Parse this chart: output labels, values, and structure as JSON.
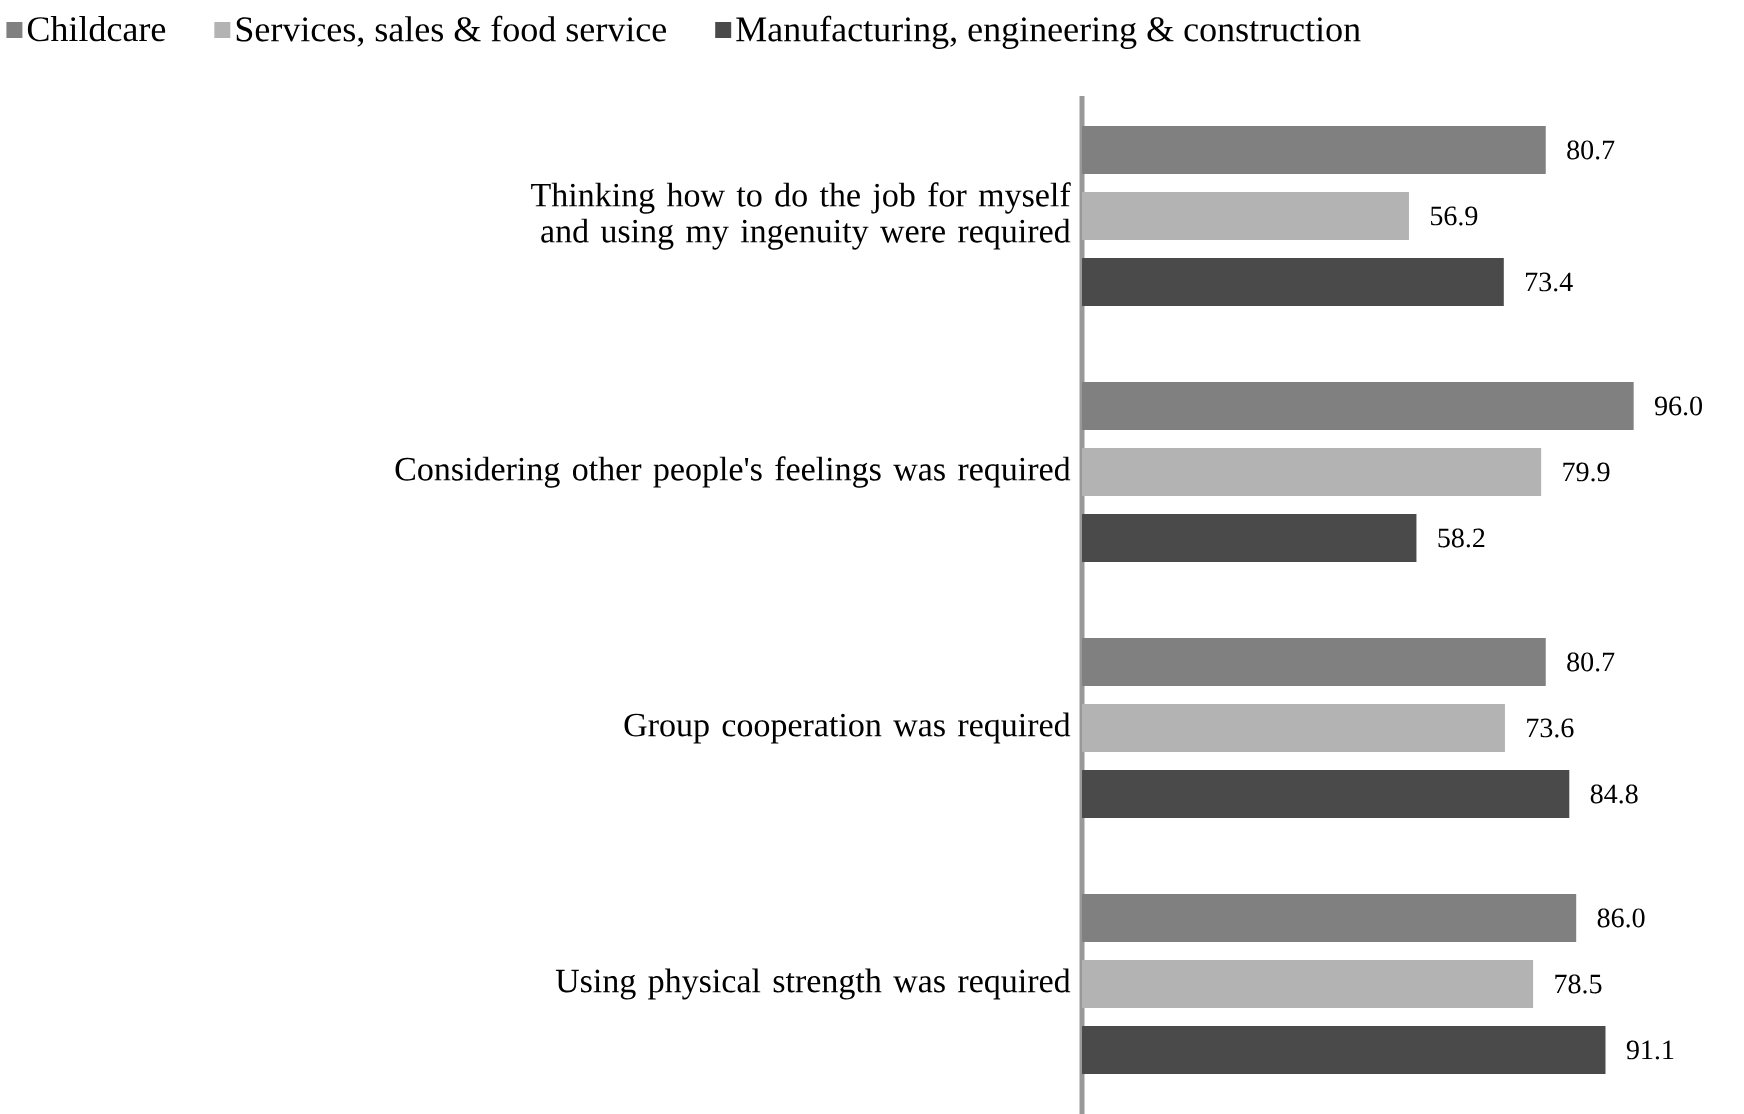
{
  "chart_data": {
    "type": "bar",
    "orientation": "horizontal",
    "categories": [
      "Thinking how to do the job for myself and using my ingenuity were required",
      "Considering other people's feelings was  required",
      "Group cooperation was  required",
      "Using physical strength was required"
    ],
    "series": [
      {
        "name": "Childcare",
        "color": "#808080",
        "values": [
          80.7,
          96.0,
          80.7,
          86.0
        ],
        "value_labels": [
          "80.7",
          "96.0",
          "80.7",
          "86.0"
        ]
      },
      {
        "name": "Services, sales & food service",
        "color": "#b3b3b3",
        "values": [
          56.9,
          79.9,
          73.6,
          78.5
        ],
        "value_labels": [
          "56.9",
          "79.9",
          "73.6",
          "78.5"
        ]
      },
      {
        "name": "Manufacturing, engineering & construction",
        "color": "#4a4a4a",
        "values": [
          73.4,
          58.2,
          84.8,
          91.1
        ],
        "value_labels": [
          "73.4",
          "58.2",
          "84.8",
          "91.1"
        ]
      }
    ],
    "tick_labels": "y",
    "legend": "top",
    "grid": false
  }
}
